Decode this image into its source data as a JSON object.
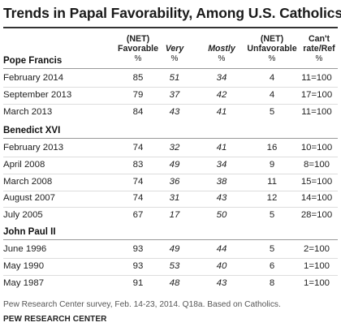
{
  "title": "Trends in Papal Favorability, Among U.S. Catholics",
  "columns": {
    "favorable_line1": "(NET)",
    "favorable_line2": "Favorable",
    "very": "Very",
    "mostly": "Mostly",
    "unfavorable_line1": "(NET)",
    "unfavorable_line2": "Unfavorable",
    "cant_rate_line1": "Can't",
    "cant_rate_line2": "rate/Ref",
    "percent_sign": "%"
  },
  "groups": [
    {
      "name": "Pope Francis",
      "rows": [
        {
          "date": "February 2014",
          "favorable": "85",
          "very": "51",
          "mostly": "34",
          "unfavorable": "4",
          "cant_rate": "11=100"
        },
        {
          "date": "September 2013",
          "favorable": "79",
          "very": "37",
          "mostly": "42",
          "unfavorable": "4",
          "cant_rate": "17=100"
        },
        {
          "date": "March 2013",
          "favorable": "84",
          "very": "43",
          "mostly": "41",
          "unfavorable": "5",
          "cant_rate": "11=100"
        }
      ]
    },
    {
      "name": "Benedict XVI",
      "rows": [
        {
          "date": "February 2013",
          "favorable": "74",
          "very": "32",
          "mostly": "41",
          "unfavorable": "16",
          "cant_rate": "10=100"
        },
        {
          "date": "April 2008",
          "favorable": "83",
          "very": "49",
          "mostly": "34",
          "unfavorable": "9",
          "cant_rate": "8=100"
        },
        {
          "date": "March 2008",
          "favorable": "74",
          "very": "36",
          "mostly": "38",
          "unfavorable": "11",
          "cant_rate": "15=100"
        },
        {
          "date": "August 2007",
          "favorable": "74",
          "very": "31",
          "mostly": "43",
          "unfavorable": "12",
          "cant_rate": "14=100"
        },
        {
          "date": "July 2005",
          "favorable": "67",
          "very": "17",
          "mostly": "50",
          "unfavorable": "5",
          "cant_rate": "28=100"
        }
      ]
    },
    {
      "name": "John Paul II",
      "rows": [
        {
          "date": "June 1996",
          "favorable": "93",
          "very": "49",
          "mostly": "44",
          "unfavorable": "5",
          "cant_rate": "2=100"
        },
        {
          "date": "May 1990",
          "favorable": "93",
          "very": "53",
          "mostly": "40",
          "unfavorable": "6",
          "cant_rate": "1=100"
        },
        {
          "date": "May 1987",
          "favorable": "91",
          "very": "48",
          "mostly": "43",
          "unfavorable": "8",
          "cant_rate": "1=100"
        }
      ]
    }
  ],
  "note": "Pew Research Center survey, Feb. 14-23, 2014. Q18a. Based on Catholics.",
  "source": "PEW RESEARCH CENTER"
}
